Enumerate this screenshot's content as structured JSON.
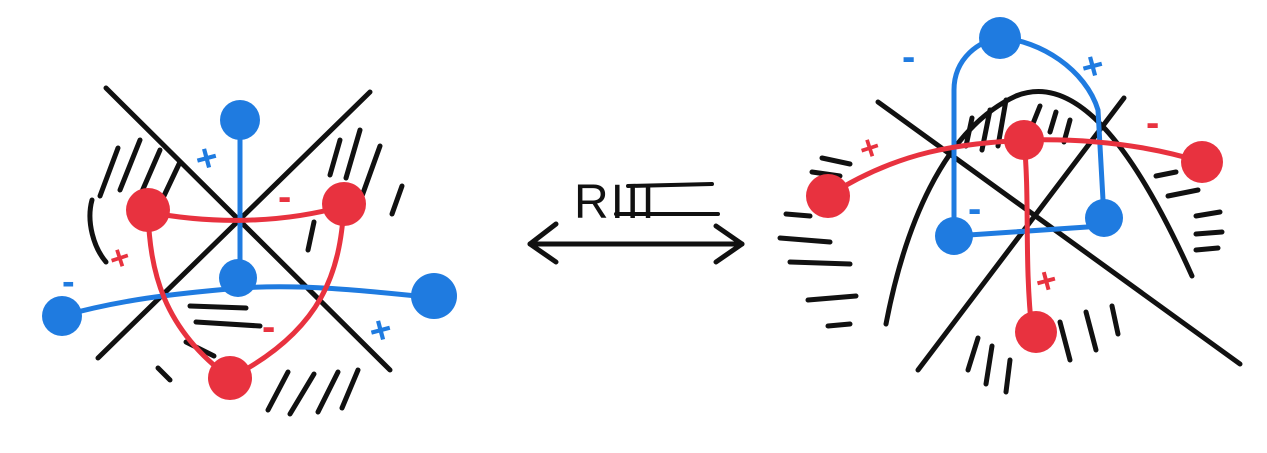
{
  "colors": {
    "ink": "#111111",
    "red": "#e8323f",
    "blue": "#1f7be0",
    "background": "#ffffff"
  },
  "move": {
    "label": "RIII",
    "arrow": "double-headed"
  },
  "left_diagram": {
    "red_signs": [
      "+",
      "-",
      "-"
    ],
    "blue_signs": [
      "+",
      "-",
      "+"
    ]
  },
  "right_diagram": {
    "red_signs": [
      "+",
      "-",
      "+"
    ],
    "blue_signs": [
      "-",
      "+",
      "-"
    ]
  }
}
